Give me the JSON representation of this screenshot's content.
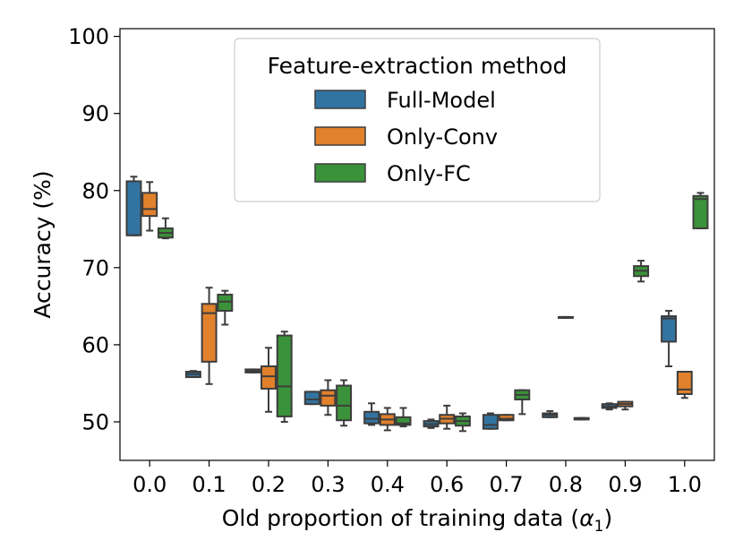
{
  "chart_data": {
    "type": "box",
    "xlabel": "Old proportion of training data (",
    "xlabel_symbol": "α",
    "xlabel_subscript": "1",
    "xlabel_close": ")",
    "ylabel": "Accuracy (%)",
    "ylim": [
      45,
      101
    ],
    "yticks": [
      50,
      60,
      70,
      80,
      90,
      100
    ],
    "categories": [
      "0.0",
      "0.1",
      "0.2",
      "0.3",
      "0.4",
      "0.6",
      "0.7",
      "0.8",
      "0.9",
      "1.0"
    ],
    "legend": {
      "title": "Feature-extraction method",
      "position": "top-center"
    },
    "series": [
      {
        "name": "Full-Model",
        "color": "#3274a1",
        "boxes": [
          {
            "min": 74.2,
            "q1": 74.2,
            "median": 74.2,
            "q3": 81.2,
            "max": 81.8
          },
          {
            "min": 55.8,
            "q1": 55.8,
            "median": 56.2,
            "q3": 56.5,
            "max": 56.6
          },
          {
            "min": 56.4,
            "q1": 56.4,
            "median": 56.6,
            "q3": 56.8,
            "max": 56.8
          },
          {
            "min": 52.3,
            "q1": 52.3,
            "median": 52.9,
            "q3": 53.9,
            "max": 53.9
          },
          {
            "min": 49.6,
            "q1": 49.8,
            "median": 50.4,
            "q3": 51.3,
            "max": 52.4
          },
          {
            "min": 49.2,
            "q1": 49.4,
            "median": 49.7,
            "q3": 50.1,
            "max": 50.3
          },
          {
            "min": 49.1,
            "q1": 49.1,
            "median": 49.6,
            "q3": 50.9,
            "max": 51.1
          },
          {
            "min": 50.6,
            "q1": 50.6,
            "median": 50.9,
            "q3": 51.1,
            "max": 51.4
          },
          {
            "min": 51.6,
            "q1": 51.8,
            "median": 52.0,
            "q3": 52.3,
            "max": 52.4
          },
          {
            "min": 57.2,
            "q1": 60.4,
            "median": 63.4,
            "q3": 63.7,
            "max": 64.4
          }
        ]
      },
      {
        "name": "Only-Conv",
        "color": "#e1812c",
        "boxes": [
          {
            "min": 74.8,
            "q1": 76.7,
            "median": 77.6,
            "q3": 79.7,
            "max": 81.1
          },
          {
            "min": 54.9,
            "q1": 57.8,
            "median": 64.1,
            "q3": 65.3,
            "max": 67.4
          },
          {
            "min": 51.3,
            "q1": 54.3,
            "median": 55.9,
            "q3": 57.2,
            "max": 59.6
          },
          {
            "min": 50.9,
            "q1": 52.1,
            "median": 53.4,
            "q3": 54.1,
            "max": 55.4
          },
          {
            "min": 48.9,
            "q1": 49.6,
            "median": 50.3,
            "q3": 51.0,
            "max": 51.8
          },
          {
            "min": 49.1,
            "q1": 49.8,
            "median": 50.4,
            "q3": 50.9,
            "max": 52.1
          },
          {
            "min": 50.2,
            "q1": 50.2,
            "median": 50.4,
            "q3": 50.9,
            "max": 50.9
          },
          {
            "min": 63.5,
            "q1": 63.5,
            "median": 63.5,
            "q3": 63.6,
            "max": 63.6
          },
          {
            "min": 51.6,
            "q1": 52.0,
            "median": 52.3,
            "q3": 52.6,
            "max": 52.6
          },
          {
            "min": 53.1,
            "q1": 53.6,
            "median": 54.2,
            "q3": 56.5,
            "max": 56.5
          }
        ]
      },
      {
        "name": "Only-FC",
        "color": "#3a923a",
        "boxes": [
          {
            "min": 73.8,
            "q1": 73.9,
            "median": 74.5,
            "q3": 75.1,
            "max": 76.4
          },
          {
            "min": 62.6,
            "q1": 64.4,
            "median": 65.6,
            "q3": 66.5,
            "max": 67.0
          },
          {
            "min": 50.0,
            "q1": 50.7,
            "median": 54.6,
            "q3": 61.2,
            "max": 61.7
          },
          {
            "min": 49.5,
            "q1": 50.2,
            "median": 52.1,
            "q3": 54.7,
            "max": 55.4
          },
          {
            "min": 49.4,
            "q1": 49.6,
            "median": 49.8,
            "q3": 50.6,
            "max": 51.8
          },
          {
            "min": 48.8,
            "q1": 49.5,
            "median": 50.1,
            "q3": 50.7,
            "max": 51.1
          },
          {
            "min": 51.0,
            "q1": 52.9,
            "median": 53.5,
            "q3": 54.1,
            "max": 54.1
          },
          {
            "min": 50.3,
            "q1": 50.3,
            "median": 50.4,
            "q3": 50.5,
            "max": 50.5
          },
          {
            "min": 68.2,
            "q1": 68.9,
            "median": 69.6,
            "q3": 70.2,
            "max": 70.9
          },
          {
            "min": 75.1,
            "q1": 75.1,
            "median": 78.9,
            "q3": 79.3,
            "max": 79.7
          }
        ]
      }
    ]
  }
}
